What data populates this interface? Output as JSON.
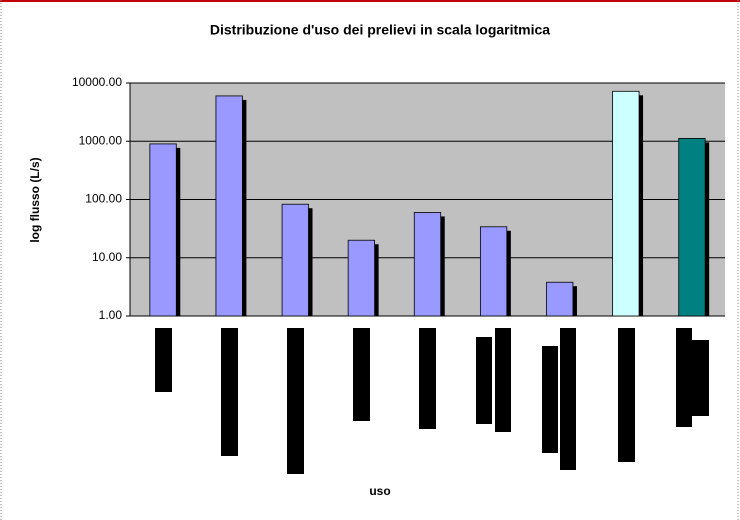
{
  "chart_data": {
    "type": "bar",
    "title": "Distribuzione d'uso dei prelievi in scala logaritmica",
    "x_label": "uso",
    "y_label": "log flusso (L/s)",
    "categories": [
      null,
      null,
      null,
      null,
      null,
      null,
      null,
      null,
      null
    ],
    "values": [
      900,
      6000,
      83,
      20,
      60,
      34,
      3.8,
      7200,
      1120
    ],
    "colors": [
      "#9999ff",
      "#9999ff",
      "#9999ff",
      "#9999ff",
      "#9999ff",
      "#9999ff",
      "#9999ff",
      "#ccffff",
      "#008080"
    ],
    "log_scale": true,
    "ylim": [
      1,
      10000
    ],
    "yticks": [
      {
        "value": 1,
        "label": "1.00"
      },
      {
        "value": 10,
        "label": "10.00"
      },
      {
        "value": 100,
        "label": "100.00"
      },
      {
        "value": 1000,
        "label": "1000.00"
      },
      {
        "value": 10000,
        "label": "10000.00"
      }
    ],
    "grid": true
  }
}
